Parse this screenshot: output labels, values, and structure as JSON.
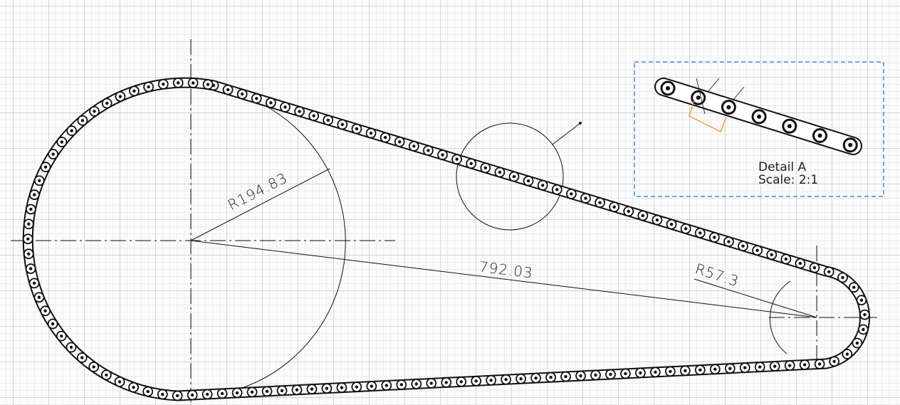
{
  "dimensions": {
    "big_radius": "R194.83",
    "center_distance": "792.03",
    "small_radius": "R57.3"
  },
  "detail": {
    "title": "Detail A",
    "scale": "Scale: 2:1"
  }
}
